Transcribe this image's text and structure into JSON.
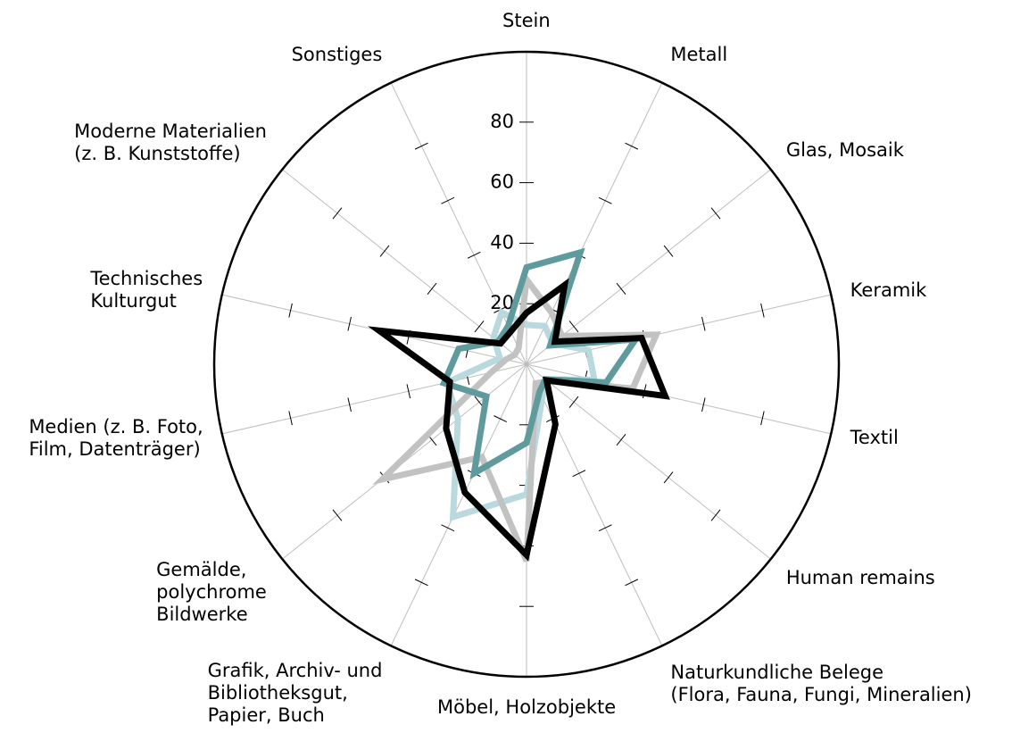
{
  "chart_data": {
    "type": "radar",
    "categories": [
      "Stein",
      "Metall",
      "Glas, Mosaik",
      "Keramik",
      "Textil",
      "Human remains",
      "Naturkundliche Belege\n(Flora, Fauna, Fungi, Mineralien)",
      "Möbel, Holzobjekte",
      "Grafik, Archiv- und\nBibliotheksgut,\nPapier, Buch",
      "Gemälde,\npolychrome\nBildwerke",
      "Medien (z. B. Foto,\nFilm, Datenträger)",
      "Technisches\nKulturgut",
      "Moderne Materialien\n(z. B. Kunststoffe)",
      "Sonstiges"
    ],
    "ylim": [
      0,
      100
    ],
    "yticks": [
      20,
      40,
      60,
      80
    ],
    "series": [
      {
        "color": "#b9d9de",
        "values": [
          13,
          14,
          11,
          21,
          23,
          8,
          12,
          43,
          56,
          29,
          27,
          9,
          14,
          19
        ]
      },
      {
        "color": "#c2c2c2",
        "values": [
          28,
          19,
          15,
          44,
          36,
          9,
          7,
          65,
          34,
          61,
          12,
          7,
          5,
          6
        ]
      },
      {
        "color": "#5f9a9d",
        "values": [
          32,
          41,
          10,
          37,
          27,
          8,
          10,
          26,
          40,
          17,
          28,
          23,
          12,
          14
        ]
      },
      {
        "color": "#000000",
        "values": [
          17,
          29,
          12,
          39,
          47,
          8.5,
          22,
          63,
          47,
          34,
          26,
          50,
          11,
          12
        ]
      }
    ]
  }
}
